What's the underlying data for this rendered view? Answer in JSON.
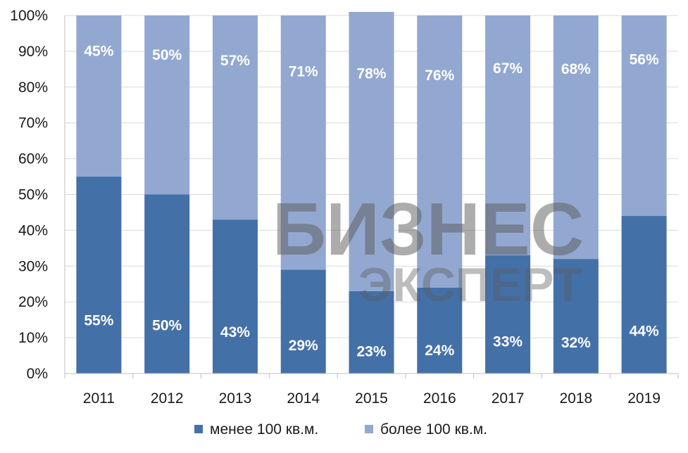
{
  "colors": {
    "below_100": "#4470a8",
    "above_100": "#92a8d0",
    "gridline": "#d9d9d9",
    "axis": "#bfbfbf",
    "watermark_text": "#5a5a5a"
  },
  "watermark": {
    "line1": "БИЗНЕС",
    "line2": "ЭКСПЕРТ"
  },
  "chart_data": {
    "type": "bar",
    "stacked": true,
    "percent": true,
    "categories": [
      "2011",
      "2012",
      "2013",
      "2014",
      "2015",
      "2016",
      "2017",
      "2018",
      "2019"
    ],
    "series": [
      {
        "name": "менее 100 кв.м.",
        "values": [
          55,
          50,
          43,
          29,
          23,
          24,
          33,
          32,
          44
        ],
        "labels": [
          "55%",
          "50%",
          "43%",
          "29%",
          "23%",
          "24%",
          "33%",
          "32%",
          "44%"
        ]
      },
      {
        "name": "более 100 кв.м.",
        "values": [
          45,
          50,
          57,
          71,
          78,
          76,
          67,
          68,
          56
        ],
        "labels": [
          "45%",
          "50%",
          "57%",
          "71%",
          "78%",
          "76%",
          "67%",
          "68%",
          "56%"
        ]
      }
    ],
    "ylim": [
      0,
      100
    ],
    "yticks": [
      0,
      10,
      20,
      30,
      40,
      50,
      60,
      70,
      80,
      90,
      100
    ],
    "ytick_labels": [
      "0%",
      "10%",
      "20%",
      "30%",
      "40%",
      "50%",
      "60%",
      "70%",
      "80%",
      "90%",
      "100%"
    ],
    "grid": true,
    "legend": "bottom",
    "title": "",
    "xlabel": "",
    "ylabel": ""
  }
}
